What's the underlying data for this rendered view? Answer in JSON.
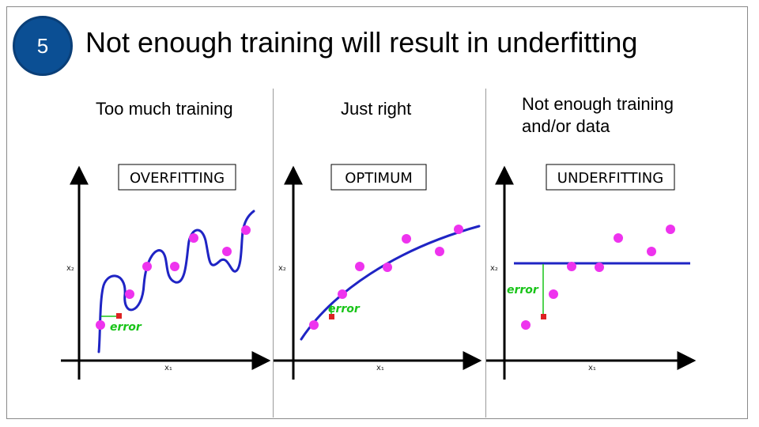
{
  "slide": {
    "number": "5",
    "title": "Not enough training will result in underfitting"
  },
  "panels": [
    {
      "heading_lines": [
        "Too much training"
      ],
      "box_label": "OVERFITTING",
      "x_axis": "x₁",
      "y_axis": "x₂",
      "error_label": "error"
    },
    {
      "heading_lines": [
        "Just right"
      ],
      "box_label": "OPTIMUM",
      "x_axis": "x₁",
      "y_axis": "x₂",
      "error_label": "error"
    },
    {
      "heading_lines": [
        "Not enough training",
        "and/or data"
      ],
      "box_label": "UNDERFITTING",
      "x_axis": "x₁",
      "y_axis": "x₂",
      "error_label": "error"
    }
  ],
  "colors": {
    "badge": "#0b4f94",
    "points": "#ee33ee",
    "curve": "#1f24c4",
    "error_line": "#18c418",
    "error_marker": "#dd2222"
  }
}
